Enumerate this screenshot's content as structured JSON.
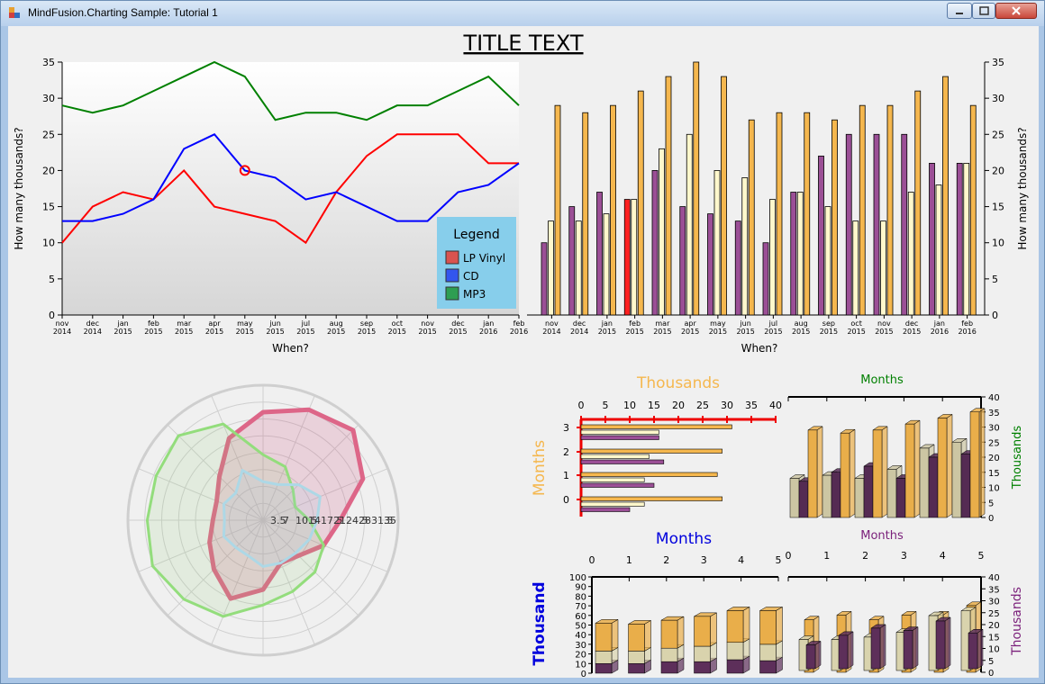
{
  "window": {
    "title": "MindFusion.Charting Sample: Tutorial 1"
  },
  "page_title": "TITLE TEXT",
  "colors": {
    "lp": "#ff0000",
    "cd": "#0000ff",
    "mp3": "#008000",
    "bar_purple": "#9b4f96",
    "bar_ivory": "#fff8cc",
    "bar_orange": "#f5b74e",
    "legend_bg": "#87ceeb"
  },
  "chart_data": [
    {
      "type": "line",
      "title": "TITLE TEXT",
      "xlabel": "When?",
      "ylabel": "How many thousands?",
      "ylim": [
        0,
        35
      ],
      "categories": [
        "nov 2014",
        "dec 2014",
        "jan 2015",
        "feb 2015",
        "mar 2015",
        "apr 2015",
        "may 2015",
        "jun 2015",
        "jul 2015",
        "aug 2015",
        "sep 2015",
        "oct 2015",
        "nov 2015",
        "dec 2015",
        "jan 2016",
        "feb 2016"
      ],
      "yticks": [
        "0",
        "5",
        "10",
        "15",
        "20",
        "25",
        "30",
        "35"
      ],
      "legend": {
        "title": "Legend",
        "placement": "bottom-right"
      },
      "series": [
        {
          "name": "LP Vinyl",
          "values": [
            10,
            15,
            17,
            16,
            20,
            15,
            14,
            13,
            10,
            17,
            22,
            25,
            25,
            25,
            21,
            21
          ]
        },
        {
          "name": "CD",
          "values": [
            13,
            13,
            14,
            16,
            23,
            25,
            20,
            19,
            16,
            17,
            15,
            13,
            13,
            17,
            18,
            21
          ]
        },
        {
          "name": "MP3",
          "values": [
            29,
            28,
            29,
            31,
            33,
            35,
            33,
            27,
            28,
            28,
            27,
            29,
            29,
            31,
            33,
            29
          ]
        }
      ],
      "highlight": {
        "series": "CD",
        "category": "may 2015",
        "value": 20
      }
    },
    {
      "type": "bar",
      "xlabel": "When?",
      "ylabel": "How many thousands?",
      "ylim": [
        0,
        35
      ],
      "categories": [
        "nov 2014",
        "dec 2014",
        "jan 2015",
        "feb 2015",
        "mar 2015",
        "apr 2015",
        "may 2015",
        "jun 2015",
        "jul 2015",
        "aug 2015",
        "sep 2015",
        "oct 2015",
        "nov 2015",
        "dec 2015",
        "jan 2016",
        "feb 2016"
      ],
      "series": [
        {
          "values": [
            10,
            15,
            17,
            16,
            20,
            15,
            14,
            13,
            10,
            17,
            22,
            25,
            25,
            25,
            21,
            21
          ]
        },
        {
          "values": [
            13,
            13,
            14,
            16,
            23,
            25,
            20,
            19,
            16,
            17,
            15,
            13,
            13,
            17,
            18,
            21
          ]
        },
        {
          "values": [
            29,
            28,
            29,
            31,
            33,
            35,
            33,
            27,
            28,
            28,
            27,
            29,
            29,
            31,
            33,
            29
          ]
        }
      ],
      "highlight": {
        "series_index": 0,
        "category": "feb 2015"
      }
    },
    {
      "type": "radar",
      "rings": 8,
      "spokes": 16,
      "tick_text": [
        "3.5",
        "7",
        "10.5",
        "14",
        "17.5",
        "21",
        "24.5",
        "28",
        "31.5",
        "35"
      ],
      "series": [
        {
          "values": [
            17,
            15,
            11,
            9,
            12,
            17,
            19,
            20,
            22,
            27,
            29,
            31,
            30,
            30,
            31,
            27
          ]
        },
        {
          "values": [
            10,
            10,
            13,
            16,
            14,
            13,
            12,
            12,
            12,
            10,
            10,
            11,
            10,
            11,
            10,
            14
          ]
        },
        {
          "values": [
            28,
            31,
            33,
            28,
            20,
            17,
            13,
            12,
            18,
            22,
            18,
            15,
            13,
            13,
            16,
            23
          ]
        }
      ]
    },
    {
      "type": "bar",
      "orientation": "horizontal",
      "title": "Thousands",
      "ylabel": "Months",
      "xticks": [
        "0",
        "5",
        "10",
        "15",
        "20",
        "25",
        "30",
        "35",
        "40"
      ],
      "categories": [
        "0",
        "1",
        "2",
        "3"
      ],
      "series": [
        {
          "values": [
            10,
            15,
            17,
            16
          ]
        },
        {
          "values": [
            13,
            13,
            14,
            16
          ]
        },
        {
          "values": [
            29,
            28,
            29,
            31
          ]
        }
      ]
    },
    {
      "type": "bar3d",
      "title": "Months",
      "ylabel": "Thousands",
      "yticks": [
        "0",
        "5",
        "10",
        "15",
        "20",
        "25",
        "30",
        "35",
        "40"
      ],
      "series": [
        {
          "values": [
            12,
            15,
            17,
            13,
            20,
            21
          ]
        },
        {
          "values": [
            13,
            14,
            13,
            16,
            23,
            25
          ]
        },
        {
          "values": [
            29,
            28,
            29,
            31,
            33,
            35
          ]
        }
      ]
    },
    {
      "type": "bar3d-stacked",
      "title": "Months",
      "ylabel": "Thousand",
      "xticks": [
        "0",
        "1",
        "2",
        "3",
        "4",
        "5"
      ],
      "yticks": [
        "0",
        "10",
        "20",
        "30",
        "40",
        "50",
        "60",
        "70",
        "80",
        "90",
        "100"
      ],
      "series": [
        {
          "values": [
            10,
            10,
            12,
            12,
            14,
            13
          ]
        },
        {
          "values": [
            13,
            13,
            14,
            16,
            18,
            17
          ]
        },
        {
          "values": [
            29,
            28,
            29,
            31,
            33,
            35
          ]
        }
      ]
    },
    {
      "type": "bar3d",
      "title": "Months",
      "ylabel": "Thousands",
      "xticks": [
        "0",
        "1",
        "2",
        "3",
        "4",
        "5"
      ],
      "yticks": [
        "0",
        "5",
        "10",
        "15",
        "20",
        "25",
        "30",
        "35",
        "40"
      ],
      "series": [
        {
          "values": [
            10,
            14,
            17,
            16,
            20,
            15
          ]
        },
        {
          "values": [
            13,
            13,
            14,
            16,
            23,
            25
          ]
        },
        {
          "values": [
            22,
            24,
            22,
            24,
            24,
            28
          ]
        }
      ]
    }
  ]
}
